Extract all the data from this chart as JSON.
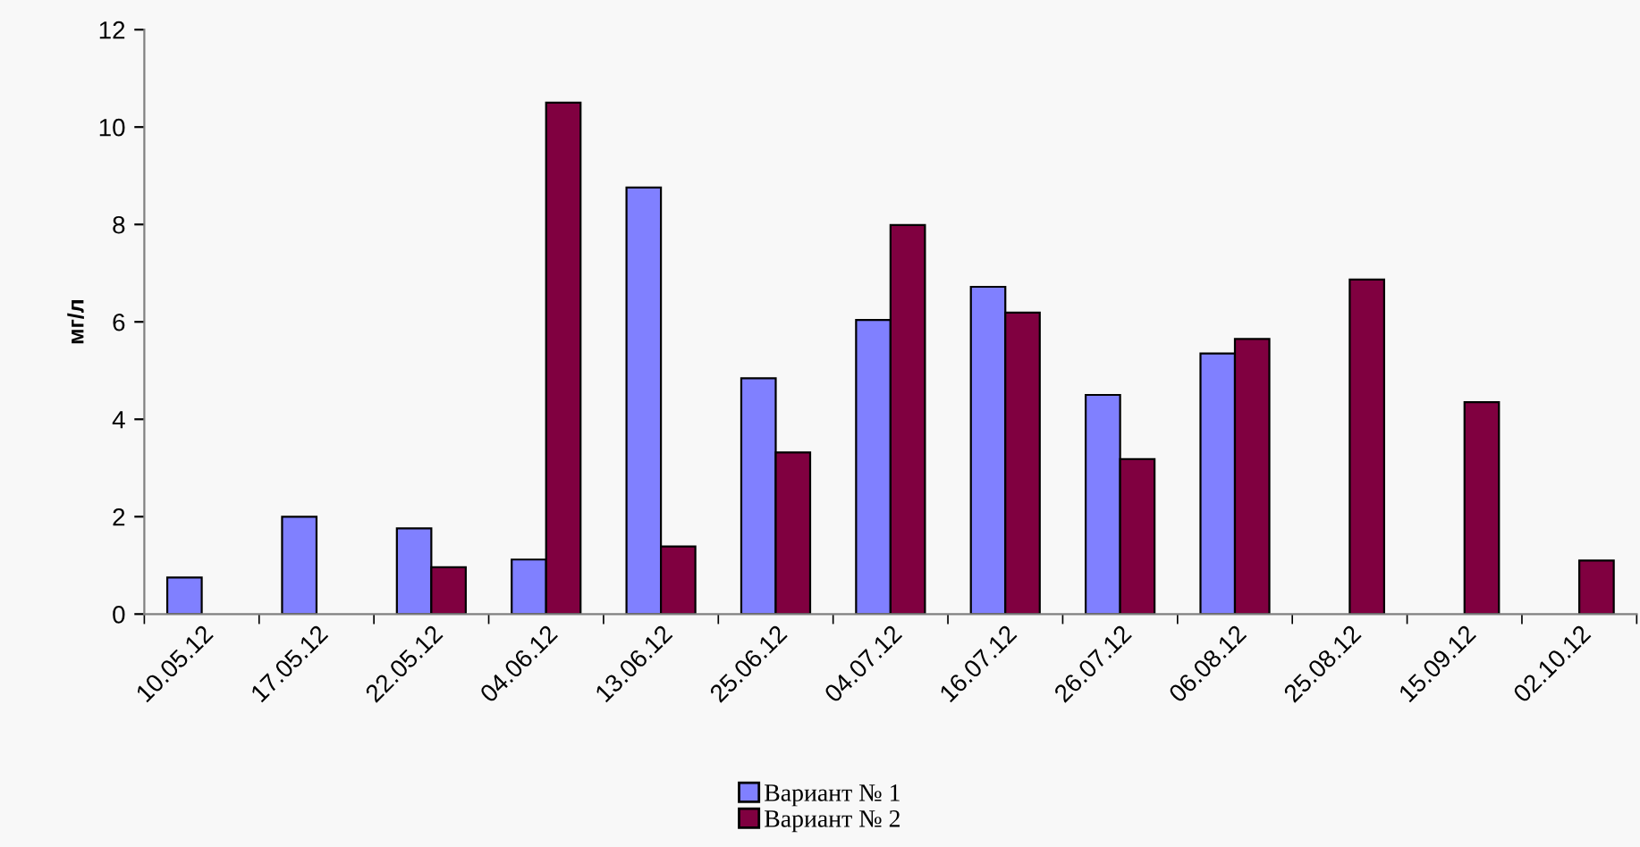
{
  "chart_data": {
    "type": "bar",
    "ylabel": "мг/л",
    "categories": [
      "10.05.12",
      "17.05.12",
      "22.05.12",
      "04.06.12",
      "13.06.12",
      "25.06.12",
      "04.07.12",
      "16.07.12",
      "26.07.12",
      "06.08.12",
      "25.08.12",
      "15.09.12",
      "02.10.12"
    ],
    "series": [
      {
        "name": "Вариант № 1",
        "color": "#8080ff",
        "values": [
          0.75,
          2.0,
          1.76,
          1.12,
          8.76,
          4.84,
          6.04,
          6.72,
          4.5,
          5.35,
          null,
          null,
          null
        ]
      },
      {
        "name": "Вариант № 2",
        "color": "#800040",
        "values": [
          null,
          null,
          0.96,
          10.5,
          1.39,
          3.32,
          7.99,
          6.19,
          3.18,
          5.65,
          6.87,
          4.35,
          1.1
        ]
      }
    ],
    "ylim": [
      0,
      12
    ],
    "yticks": [
      0,
      2,
      4,
      6,
      8,
      10,
      12
    ],
    "grid": false,
    "legend": "bottom"
  }
}
